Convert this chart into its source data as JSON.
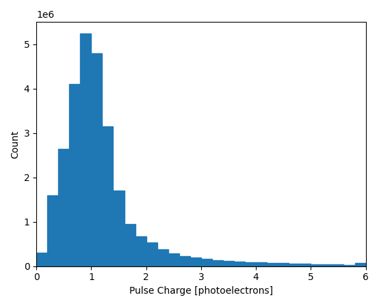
{
  "bin_edges": [
    0.0,
    0.2,
    0.4,
    0.6,
    0.8,
    1.0,
    1.2,
    1.4,
    1.6,
    1.8,
    2.0,
    2.2,
    2.4,
    2.6,
    2.8,
    3.0,
    3.2,
    3.4,
    3.6,
    3.8,
    4.0,
    4.2,
    4.4,
    4.6,
    4.8,
    5.0,
    5.2,
    5.4,
    5.6,
    5.8,
    6.0
  ],
  "counts": [
    300000,
    1600000,
    2650000,
    4100000,
    5250000,
    4800000,
    3150000,
    1700000,
    950000,
    680000,
    530000,
    380000,
    290000,
    230000,
    190000,
    160000,
    140000,
    120000,
    105000,
    95000,
    85000,
    75000,
    65000,
    55000,
    50000,
    45000,
    40000,
    35000,
    30000,
    80000
  ],
  "bar_color": "#1f77b4",
  "xlabel": "Pulse Charge [photoelectrons]",
  "ylabel": "Count",
  "xlim": [
    0,
    6
  ],
  "ylim": [
    0,
    5500000
  ],
  "yticks": [
    0,
    1000000,
    2000000,
    3000000,
    4000000,
    5000000
  ],
  "ytick_labels": [
    "0",
    "1",
    "2",
    "3",
    "4",
    "5"
  ],
  "offset_label": "1e6"
}
